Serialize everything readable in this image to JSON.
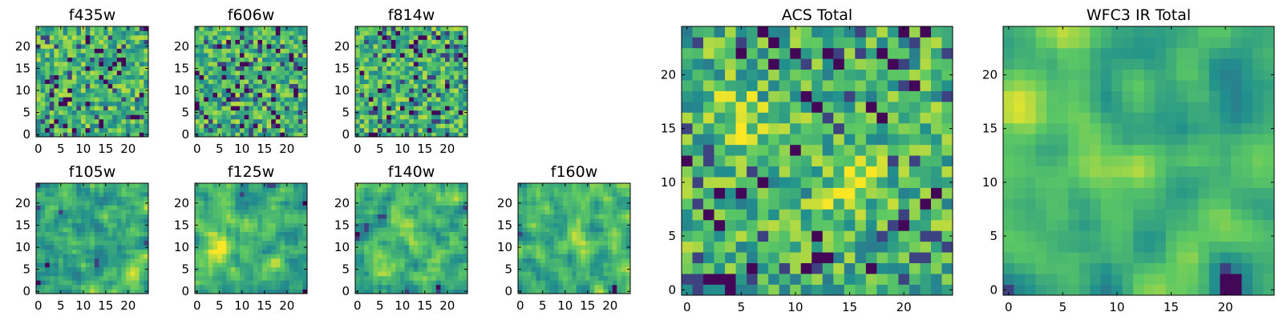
{
  "chart_data": [
    {
      "type": "heatmap",
      "title": "f435w",
      "grid": false,
      "xlim": [
        0,
        24
      ],
      "ylim": [
        0,
        24
      ],
      "xticks": [
        "0",
        "5",
        "10",
        "15",
        "20"
      ],
      "yticks": [
        "0",
        "5",
        "10",
        "15",
        "20"
      ],
      "seed": 11,
      "smooth": 0,
      "hotspots": []
    },
    {
      "type": "heatmap",
      "title": "f606w",
      "grid": false,
      "xlim": [
        0,
        24
      ],
      "ylim": [
        0,
        24
      ],
      "xticks": [
        "0",
        "5",
        "10",
        "15",
        "20"
      ],
      "yticks": [
        "0",
        "5",
        "10",
        "15",
        "20"
      ],
      "seed": 23,
      "smooth": 0,
      "hotspots": []
    },
    {
      "type": "heatmap",
      "title": "f814w",
      "grid": false,
      "xlim": [
        0,
        24
      ],
      "ylim": [
        0,
        24
      ],
      "xticks": [
        "0",
        "5",
        "10",
        "15",
        "20"
      ],
      "yticks": [
        "0",
        "5",
        "10",
        "15",
        "20"
      ],
      "seed": 37,
      "smooth": 0,
      "hotspots": []
    },
    {
      "type": "heatmap",
      "title": "f105w",
      "grid": false,
      "xlim": [
        0,
        24
      ],
      "ylim": [
        0,
        24
      ],
      "xticks": [
        "0",
        "5",
        "10",
        "15",
        "20"
      ],
      "yticks": [
        "0",
        "5",
        "10",
        "15",
        "20"
      ],
      "seed": 41,
      "smooth": 1,
      "hotspots": [
        [
          21,
          5
        ]
      ]
    },
    {
      "type": "heatmap",
      "title": "f125w",
      "grid": false,
      "xlim": [
        0,
        24
      ],
      "ylim": [
        0,
        24
      ],
      "xticks": [
        "0",
        "5",
        "10",
        "15",
        "20"
      ],
      "yticks": [
        "0",
        "5",
        "10",
        "15",
        "20"
      ],
      "seed": 53,
      "smooth": 1,
      "hotspots": [
        [
          5,
          10
        ]
      ]
    },
    {
      "type": "heatmap",
      "title": "f140w",
      "grid": false,
      "xlim": [
        0,
        24
      ],
      "ylim": [
        0,
        24
      ],
      "xticks": [
        "0",
        "5",
        "10",
        "15",
        "20"
      ],
      "yticks": [
        "0",
        "5",
        "10",
        "15",
        "20"
      ],
      "seed": 67,
      "smooth": 1,
      "hotspots": [
        [
          10,
          15
        ]
      ]
    },
    {
      "type": "heatmap",
      "title": "f160w",
      "grid": false,
      "xlim": [
        0,
        24
      ],
      "ylim": [
        0,
        24
      ],
      "xticks": [
        "0",
        "5",
        "10",
        "15",
        "20"
      ],
      "yticks": [
        "0",
        "5",
        "10",
        "15",
        "20"
      ],
      "seed": 79,
      "smooth": 1,
      "hotspots": [
        [
          13,
          12
        ]
      ]
    },
    {
      "type": "heatmap",
      "title": "ACS Total",
      "grid": false,
      "xlim": [
        0,
        24
      ],
      "ylim": [
        0,
        24
      ],
      "xticks": [
        "0",
        "5",
        "10",
        "15",
        "20"
      ],
      "yticks": [
        "0",
        "5",
        "10",
        "15",
        "20"
      ],
      "seed": 97,
      "smooth": 0,
      "hotspots": [
        [
          5,
          16
        ],
        [
          15,
          10
        ]
      ]
    },
    {
      "type": "heatmap",
      "title": "WFC3 IR Total",
      "grid": false,
      "xlim": [
        0,
        24
      ],
      "ylim": [
        0,
        24
      ],
      "xticks": [
        "0",
        "5",
        "10",
        "15",
        "20"
      ],
      "yticks": [
        "0",
        "5",
        "10",
        "15",
        "20"
      ],
      "seed": 131,
      "smooth": 2,
      "hotspots": [
        [
          21,
          6
        ],
        [
          12,
          11
        ],
        [
          1,
          17
        ]
      ]
    }
  ],
  "colormap": [
    "#440154",
    "#3b528b",
    "#21908d",
    "#5dc963",
    "#fde725"
  ]
}
